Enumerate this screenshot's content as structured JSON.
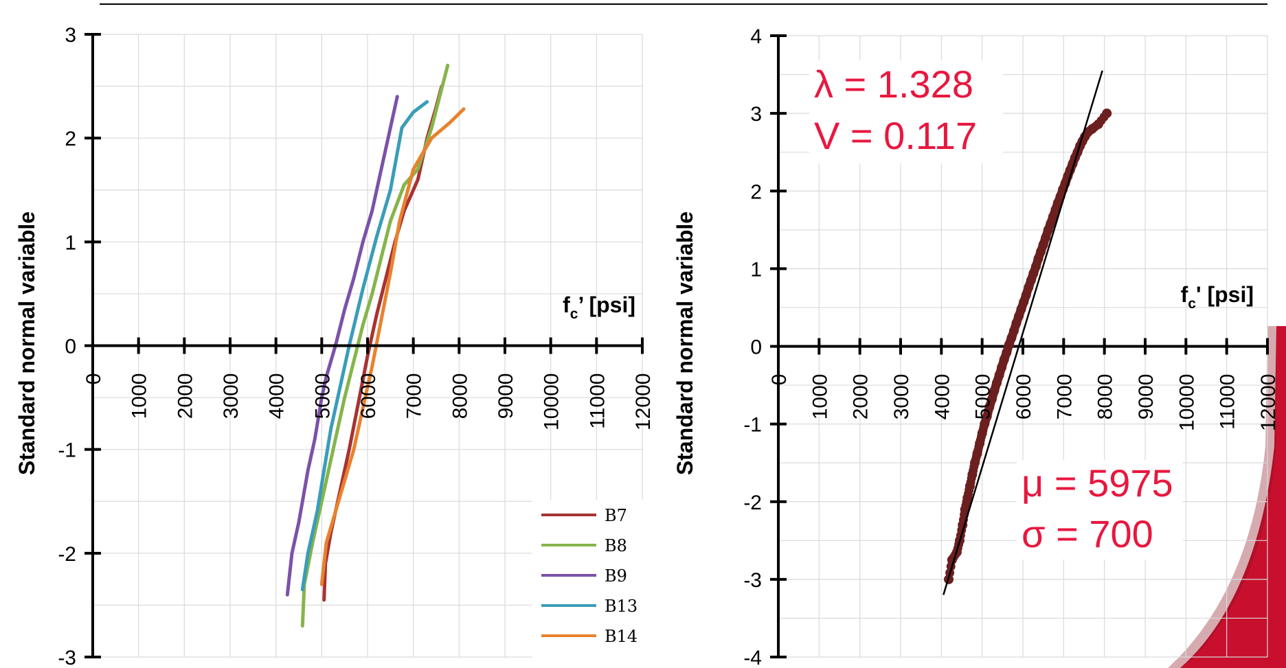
{
  "chart_data": [
    {
      "type": "line",
      "ylabel": "Standard normal variable",
      "xlabel_main": "f",
      "xlabel_sub": "c",
      "xlabel_rest": "’ [psi]",
      "xlim": [
        0,
        12000
      ],
      "ylim": [
        -3,
        3
      ],
      "x_ticks": [
        "0",
        "1000",
        "2000",
        "3000",
        "4000",
        "5000",
        "6000",
        "7000",
        "8000",
        "9000",
        "10000",
        "11000",
        "12000"
      ],
      "y_ticks": [
        "-3",
        "-2",
        "-1",
        "0",
        "1",
        "2",
        "3"
      ],
      "grid": true,
      "legend_position": "bottom-right",
      "series": [
        {
          "name": "B7",
          "color": "#a83232",
          "x": [
            5050,
            5080,
            5200,
            5400,
            5600,
            5800,
            6000,
            6200,
            6400,
            6600,
            6800,
            7100,
            7300,
            7500,
            7620
          ],
          "y": [
            -2.45,
            -2.1,
            -1.8,
            -1.4,
            -1.0,
            -0.55,
            -0.1,
            0.3,
            0.65,
            1.0,
            1.3,
            1.6,
            2.0,
            2.3,
            2.5
          ]
        },
        {
          "name": "B8",
          "color": "#86b44b",
          "x": [
            4580,
            4620,
            4800,
            4950,
            5100,
            5300,
            5500,
            5700,
            5900,
            6100,
            6300,
            6500,
            6800,
            7100,
            7400,
            7750
          ],
          "y": [
            -2.7,
            -2.3,
            -1.9,
            -1.6,
            -1.3,
            -0.9,
            -0.5,
            -0.15,
            0.2,
            0.5,
            0.85,
            1.2,
            1.55,
            1.7,
            2.1,
            2.7
          ]
        },
        {
          "name": "B9",
          "color": "#7b52a8",
          "x": [
            4250,
            4350,
            4500,
            4700,
            4850,
            5000,
            5100,
            5300,
            5500,
            5700,
            5900,
            6100,
            6300,
            6500,
            6650
          ],
          "y": [
            -2.4,
            -2.0,
            -1.7,
            -1.2,
            -0.9,
            -0.5,
            -0.3,
            0.0,
            0.35,
            0.65,
            1.0,
            1.3,
            1.7,
            2.1,
            2.4
          ]
        },
        {
          "name": "B13",
          "color": "#3a9db8",
          "x": [
            4580,
            4700,
            4900,
            5050,
            5200,
            5400,
            5600,
            5900,
            6200,
            6500,
            6750,
            7000,
            7300
          ],
          "y": [
            -2.35,
            -2.0,
            -1.6,
            -1.2,
            -0.8,
            -0.4,
            0.0,
            0.55,
            1.05,
            1.5,
            2.1,
            2.25,
            2.35
          ]
        },
        {
          "name": "B14",
          "color": "#e8822e",
          "x": [
            5000,
            5100,
            5300,
            5500,
            5700,
            5900,
            6100,
            6300,
            6500,
            6700,
            7000,
            7400,
            7800,
            8100
          ],
          "y": [
            -2.3,
            -1.9,
            -1.6,
            -1.3,
            -1.0,
            -0.6,
            -0.2,
            0.25,
            0.7,
            1.2,
            1.7,
            2.0,
            2.15,
            2.28
          ]
        }
      ]
    },
    {
      "type": "scatter",
      "ylabel": "Standard normal variable",
      "xlabel_main": "f",
      "xlabel_sub": "c",
      "xlabel_rest": "' [psi]",
      "xlim": [
        0,
        12000
      ],
      "ylim": [
        -4,
        4
      ],
      "x_ticks": [
        "0",
        "1000",
        "2000",
        "3000",
        "4000",
        "5000",
        "6000",
        "7000",
        "8000",
        "9000",
        "10000",
        "11000",
        "12000"
      ],
      "y_ticks": [
        "-4",
        "-3",
        "-2",
        "-1",
        "0",
        "1",
        "2",
        "3",
        "4"
      ],
      "grid": true,
      "point_color": "#6b1f1f",
      "points": {
        "x": [
          4180,
          4260,
          4380,
          4450,
          4520,
          4580,
          4640,
          4700,
          4760,
          4820,
          4880,
          4940,
          5000,
          5060,
          5120,
          5180,
          5240,
          5300,
          5360,
          5420,
          5480,
          5540,
          5600,
          5660,
          5720,
          5780,
          5840,
          5900,
          5960,
          6020,
          6080,
          6140,
          6200,
          6260,
          6320,
          6380,
          6440,
          6500,
          6560,
          6620,
          6680,
          6740,
          6800,
          6860,
          6920,
          6980,
          7040,
          7100,
          7160,
          7220,
          7280,
          7340,
          7400,
          7460,
          7520,
          7600,
          7700,
          7850,
          8060
        ],
        "y": [
          -3.0,
          -2.75,
          -2.65,
          -2.5,
          -2.3,
          -2.1,
          -1.95,
          -1.8,
          -1.65,
          -1.5,
          -1.38,
          -1.25,
          -1.12,
          -1.0,
          -0.9,
          -0.78,
          -0.68,
          -0.57,
          -0.47,
          -0.37,
          -0.27,
          -0.17,
          -0.08,
          0.02,
          0.11,
          0.2,
          0.3,
          0.39,
          0.48,
          0.57,
          0.66,
          0.76,
          0.85,
          0.94,
          1.03,
          1.13,
          1.22,
          1.31,
          1.4,
          1.5,
          1.58,
          1.67,
          1.76,
          1.85,
          1.93,
          2.02,
          2.1,
          2.19,
          2.27,
          2.35,
          2.43,
          2.5,
          2.58,
          2.64,
          2.7,
          2.76,
          2.8,
          2.86,
          3.0
        ]
      },
      "fit_line": {
        "x": [
          4050,
          7950
        ],
        "y": [
          -3.2,
          3.55
        ]
      },
      "annotations": {
        "lambda": "λ = 1.328",
        "v": "V = 0.117",
        "mu": "μ  = 5975",
        "sigma": "σ = 700"
      }
    }
  ],
  "legend": {
    "entries": [
      {
        "name": "B7",
        "color": "#a83232"
      },
      {
        "name": "B8",
        "color": "#86b44b"
      },
      {
        "name": "B9",
        "color": "#7b52a8"
      },
      {
        "name": "B13",
        "color": "#3a9db8"
      },
      {
        "name": "B14",
        "color": "#e8822e"
      }
    ]
  },
  "colors": {
    "accent": "#e8173f",
    "grid": "#d9d9d9",
    "axis": "#000000",
    "decor_red": "#c8102e"
  }
}
